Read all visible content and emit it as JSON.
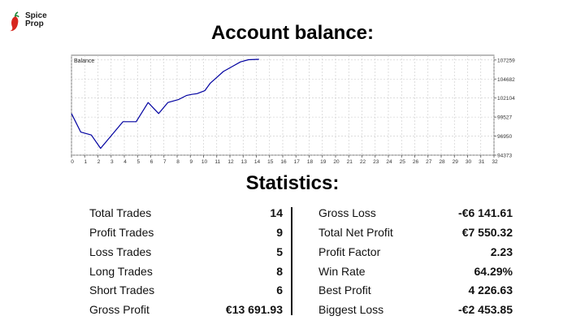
{
  "brand": {
    "name": "Spice\nProp",
    "accent": "#d7261e"
  },
  "titles": {
    "balance": "Account balance:",
    "statistics": "Statistics:"
  },
  "chart_data": {
    "type": "line",
    "title": "Balance",
    "xlabel": "",
    "ylabel": "",
    "x_ticks": [
      0,
      1,
      2,
      3,
      4,
      5,
      6,
      7,
      8,
      9,
      10,
      11,
      12,
      13,
      14,
      15,
      16,
      17,
      18,
      19,
      20,
      21,
      22,
      23,
      24,
      25,
      26,
      27,
      28,
      29,
      30,
      31,
      32
    ],
    "y_ticks": [
      94373,
      96950,
      99527,
      102104,
      104682,
      107259
    ],
    "xlim": [
      0,
      32
    ],
    "ylim": [
      94373,
      107900
    ],
    "grid": true,
    "series": [
      {
        "color": "#0000a0",
        "x": [
          0,
          0.7,
          1.5,
          2.2,
          3.0,
          3.9,
          4.9,
          5.8,
          6.6,
          7.3,
          8.1,
          8.7,
          9.1,
          9.5,
          10.1,
          10.5,
          11.0,
          11.5,
          12.2,
          12.8,
          13.4,
          14.2
        ],
        "y": [
          100000,
          97500,
          97100,
          95300,
          97000,
          98900,
          98900,
          101500,
          100000,
          101500,
          101900,
          102450,
          102600,
          102700,
          103100,
          104100,
          104900,
          105700,
          106400,
          107000,
          107300,
          107350
        ]
      }
    ]
  },
  "stats_left": [
    {
      "label": "Total Trades",
      "value": "14"
    },
    {
      "label": "Profit Trades",
      "value": "9"
    },
    {
      "label": "Loss Trades",
      "value": "5"
    },
    {
      "label": "Long Trades",
      "value": "8"
    },
    {
      "label": "Short Trades",
      "value": "6"
    },
    {
      "label": "Gross Profit",
      "value": "€13 691.93"
    }
  ],
  "stats_right": [
    {
      "label": "Gross Loss",
      "value": "-€6 141.61"
    },
    {
      "label": "Total Net Profit",
      "value": "€7 550.32"
    },
    {
      "label": "Profit Factor",
      "value": "2.23"
    },
    {
      "label": "Win Rate",
      "value": "64.29%"
    },
    {
      "label": "Best Profit",
      "value": "4 226.63"
    },
    {
      "label": "Biggest Loss",
      "value": "-€2 453.85"
    }
  ]
}
